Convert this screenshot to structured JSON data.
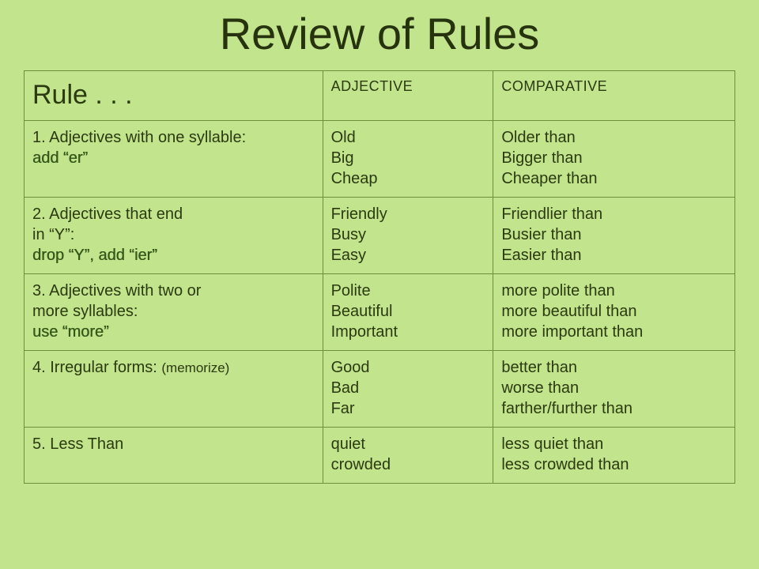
{
  "slide": {
    "title": "Review of Rules",
    "background_color": "#c2e48d",
    "border_color": "#6b8f3b",
    "title_fontsize": 56,
    "cell_fontsize": 20,
    "header_rule_fontsize": 34,
    "header_col_fontsize": 18
  },
  "table": {
    "type": "table",
    "columns": [
      "Rule . . .",
      "ADJECTIVE",
      "COMPARATIVE"
    ],
    "column_widths_pct": [
      42,
      24,
      34
    ],
    "rows": [
      {
        "rule_prefix": "1. Adjectives with one syllable:\n",
        "rule_emph": "add “er”",
        "adjective": "Old\nBig\nCheap",
        "comparative": "Older than\nBigger than\nCheaper than"
      },
      {
        "rule_prefix": "2. Adjectives that end\nin “Y”:\n",
        "rule_emph": "drop “Y”, add “ier”",
        "adjective": "Friendly\nBusy\nEasy",
        "comparative": "Friendlier than\nBusier than\nEasier than"
      },
      {
        "rule_prefix": "3. Adjectives with two or\nmore syllables:\n",
        "rule_emph": "use “more”",
        "adjective": "Polite\nBeautiful\nImportant",
        "comparative": "more polite than\nmore beautiful than\nmore important than"
      },
      {
        "rule_prefix": "4. Irregular forms: ",
        "rule_memorize": "(memorize)",
        "rule_emph": "",
        "adjective": "Good\nBad\nFar",
        "comparative": "better than\nworse than\nfarther/further than"
      },
      {
        "rule_prefix": "5. Less Than",
        "rule_emph": "",
        "adjective": "quiet\ncrowded",
        "comparative": "less quiet than\nless crowded than"
      }
    ]
  }
}
